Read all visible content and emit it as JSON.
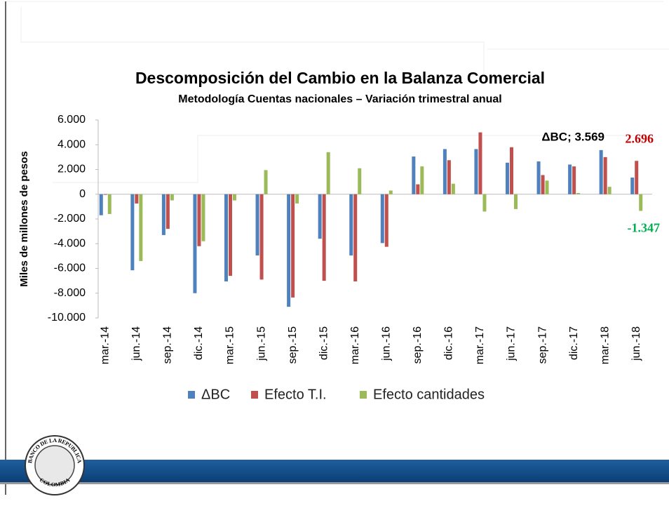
{
  "chart_data": {
    "type": "bar",
    "title": "Descomposición del Cambio en la Balanza Comercial",
    "subtitle": "Metodología Cuentas nacionales – Variación trimestral anual",
    "y_label": "Miles de millones de pesos",
    "categories": [
      "mar.-14",
      "jun.-14",
      "sep.-14",
      "dic.-14",
      "mar.-15",
      "jun.-15",
      "sep.-15",
      "dic.-15",
      "mar.-16",
      "jun.-16",
      "sep.-16",
      "dic.-16",
      "mar.-17",
      "jun.-17",
      "sep.-17",
      "dic.-17",
      "mar.-18",
      "jun.-18"
    ],
    "series": [
      {
        "name": "ΔBC",
        "color": "#4f81bd",
        "values": [
          -1700,
          -6150,
          -3300,
          -8000,
          -7050,
          -4950,
          -9100,
          -3600,
          -4950,
          -3950,
          3050,
          3650,
          3650,
          2550,
          2650,
          2400,
          3569,
          1350
        ],
        "value_labels": [
          null,
          null,
          null,
          null,
          null,
          null,
          null,
          null,
          null,
          null,
          null,
          null,
          null,
          null,
          null,
          null,
          "ΔBC; 3.569",
          null
        ],
        "label_color": "#000000"
      },
      {
        "name": "Efecto T.I.",
        "color": "#c0504d",
        "values": [
          -50,
          -750,
          -2800,
          -4200,
          -6600,
          -6900,
          -8350,
          -7000,
          -7050,
          -4250,
          800,
          2750,
          5000,
          3800,
          1550,
          2250,
          3000,
          2696
        ],
        "value_labels": [
          null,
          null,
          null,
          null,
          null,
          null,
          null,
          null,
          null,
          null,
          null,
          null,
          null,
          null,
          null,
          null,
          null,
          "2.696"
        ],
        "label_color": "#c00000"
      },
      {
        "name": "Efecto cantidades",
        "color": "#9bbb59",
        "values": [
          -1600,
          -5400,
          -500,
          -3800,
          -500,
          1950,
          -750,
          3400,
          2100,
          300,
          2250,
          850,
          -1400,
          -1200,
          1100,
          100,
          600,
          -1347
        ],
        "value_labels": [
          null,
          null,
          null,
          null,
          null,
          null,
          null,
          null,
          null,
          null,
          null,
          null,
          null,
          null,
          null,
          null,
          null,
          "-1.347"
        ],
        "label_color": "#00b050"
      }
    ],
    "ylim": [
      -10000,
      6000
    ],
    "yticks": [
      {
        "value": -10000,
        "label": "-10.000"
      },
      {
        "value": -8000,
        "label": "-8.000"
      },
      {
        "value": -6000,
        "label": "-6.000"
      },
      {
        "value": -4000,
        "label": "-4.000"
      },
      {
        "value": -2000,
        "label": "-2.000"
      },
      0,
      {
        "value": 2000,
        "label": "2.000"
      },
      {
        "value": 4000,
        "label": "4.000"
      },
      {
        "value": 6000,
        "label": "6.000"
      }
    ],
    "grid": false,
    "legend": "bottom"
  },
  "logo": {
    "top": "BANCO DE LA REPUBLICA",
    "bottom": "COLOMBIA"
  }
}
